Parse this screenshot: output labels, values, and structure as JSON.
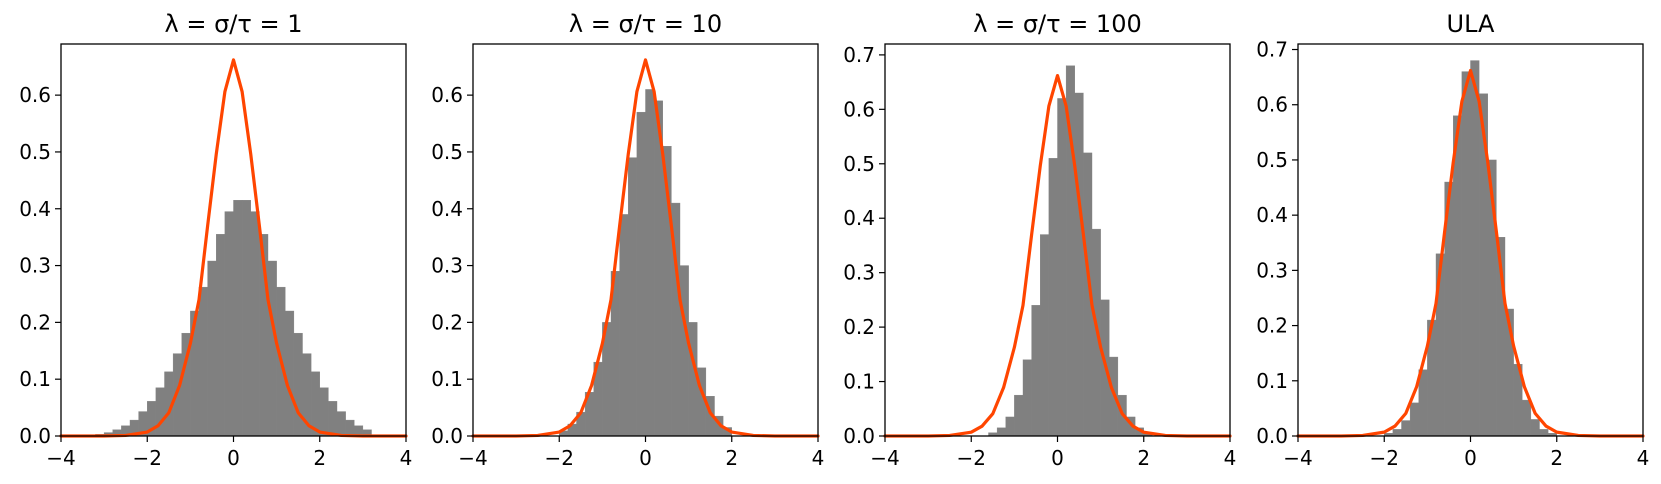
{
  "figure": {
    "background": "#ffffff",
    "bar_color": "#808080",
    "curve_color": "#ff4500"
  },
  "chart_data": [
    {
      "type": "bar",
      "title": "λ = σ/τ = 1",
      "xlabel": "",
      "ylabel": "",
      "xlim": [
        -4,
        4
      ],
      "ylim": [
        0,
        0.69
      ],
      "xticks": [
        -4,
        -2,
        0,
        2,
        4
      ],
      "xtick_labels": [
        "−4",
        "−2",
        "0",
        "2",
        "4"
      ],
      "yticks": [
        0,
        0.1,
        0.2,
        0.3,
        0.4,
        0.5,
        0.6
      ],
      "ytick_labels": [
        "0.0",
        "0.1",
        "0.2",
        "0.3",
        "0.4",
        "0.5",
        "0.6"
      ],
      "grid": false,
      "series": [
        {
          "kind": "histogram",
          "bin_edges": [
            -3.2,
            -3.0,
            -2.8,
            -2.6,
            -2.4,
            -2.2,
            -2.0,
            -1.8,
            -1.6,
            -1.4,
            -1.2,
            -1.0,
            -0.8,
            -0.6,
            -0.4,
            -0.2,
            0.0,
            0.2,
            0.4,
            0.6,
            0.8,
            1.0,
            1.2,
            1.4,
            1.6,
            1.8,
            2.0,
            2.2,
            2.4,
            2.6,
            2.8,
            3.0,
            3.2
          ],
          "values": [
            0.003,
            0.006,
            0.011,
            0.018,
            0.028,
            0.043,
            0.061,
            0.085,
            0.113,
            0.145,
            0.181,
            0.22,
            0.262,
            0.308,
            0.355,
            0.395,
            0.415,
            0.415,
            0.395,
            0.355,
            0.308,
            0.262,
            0.22,
            0.181,
            0.145,
            0.113,
            0.085,
            0.061,
            0.043,
            0.028,
            0.018,
            0.011
          ]
        },
        {
          "kind": "curve",
          "x": [
            -4,
            -3.5,
            -3,
            -2.5,
            -2,
            -1.75,
            -1.5,
            -1.25,
            -1,
            -0.8,
            -0.6,
            -0.4,
            -0.2,
            0,
            0.2,
            0.4,
            0.6,
            0.8,
            1,
            1.25,
            1.5,
            1.75,
            2,
            2.5,
            3,
            3.5,
            4
          ],
          "y": [
            0.0,
            0.0,
            0.0,
            0.001,
            0.007,
            0.018,
            0.041,
            0.089,
            0.163,
            0.24,
            0.37,
            0.496,
            0.606,
            0.662,
            0.606,
            0.496,
            0.37,
            0.24,
            0.163,
            0.089,
            0.041,
            0.018,
            0.007,
            0.001,
            0.0,
            0.0,
            0.0
          ]
        }
      ]
    },
    {
      "type": "bar",
      "title": "λ = σ/τ = 10",
      "xlabel": "",
      "ylabel": "",
      "xlim": [
        -4,
        4
      ],
      "ylim": [
        0,
        0.69
      ],
      "xticks": [
        -4,
        -2,
        0,
        2,
        4
      ],
      "xtick_labels": [
        "−4",
        "−2",
        "0",
        "2",
        "4"
      ],
      "yticks": [
        0,
        0.1,
        0.2,
        0.3,
        0.4,
        0.5,
        0.6
      ],
      "ytick_labels": [
        "0.0",
        "0.1",
        "0.2",
        "0.3",
        "0.4",
        "0.5",
        "0.6"
      ],
      "grid": false,
      "series": [
        {
          "kind": "histogram",
          "bin_edges": [
            -2.0,
            -1.8,
            -1.6,
            -1.4,
            -1.2,
            -1.0,
            -0.8,
            -0.6,
            -0.4,
            -0.2,
            0.0,
            0.2,
            0.4,
            0.6,
            0.8,
            1.0,
            1.2,
            1.4,
            1.6,
            1.8,
            2.0
          ],
          "values": [
            0.009,
            0.021,
            0.042,
            0.077,
            0.13,
            0.2,
            0.29,
            0.39,
            0.49,
            0.57,
            0.61,
            0.59,
            0.51,
            0.41,
            0.3,
            0.2,
            0.12,
            0.07,
            0.035,
            0.015
          ]
        },
        {
          "kind": "curve",
          "x": [
            -4,
            -3,
            -2.5,
            -2,
            -1.75,
            -1.5,
            -1.25,
            -1,
            -0.8,
            -0.6,
            -0.4,
            -0.2,
            0,
            0.2,
            0.4,
            0.6,
            0.8,
            1,
            1.25,
            1.5,
            1.75,
            2,
            2.5,
            3,
            4
          ],
          "y": [
            0.0,
            0.0,
            0.001,
            0.007,
            0.018,
            0.041,
            0.089,
            0.163,
            0.24,
            0.37,
            0.496,
            0.606,
            0.662,
            0.606,
            0.496,
            0.37,
            0.24,
            0.163,
            0.089,
            0.041,
            0.018,
            0.007,
            0.001,
            0.0,
            0.0
          ]
        }
      ]
    },
    {
      "type": "bar",
      "title": "λ = σ/τ = 100",
      "xlabel": "",
      "ylabel": "",
      "xlim": [
        -4,
        4
      ],
      "ylim": [
        0,
        0.72
      ],
      "xticks": [
        -4,
        -2,
        0,
        2,
        4
      ],
      "xtick_labels": [
        "−4",
        "−2",
        "0",
        "2",
        "4"
      ],
      "yticks": [
        0,
        0.1,
        0.2,
        0.3,
        0.4,
        0.5,
        0.6,
        0.7
      ],
      "ytick_labels": [
        "0.0",
        "0.1",
        "0.2",
        "0.3",
        "0.4",
        "0.5",
        "0.6",
        "0.7"
      ],
      "grid": false,
      "series": [
        {
          "kind": "histogram",
          "bin_edges": [
            -1.6,
            -1.4,
            -1.2,
            -1.0,
            -0.8,
            -0.6,
            -0.4,
            -0.2,
            0.0,
            0.2,
            0.4,
            0.6,
            0.8,
            1.0,
            1.2,
            1.4,
            1.6,
            1.8,
            2.0,
            2.2
          ],
          "values": [
            0.006,
            0.015,
            0.035,
            0.075,
            0.14,
            0.24,
            0.37,
            0.51,
            0.62,
            0.68,
            0.63,
            0.52,
            0.38,
            0.25,
            0.145,
            0.075,
            0.035,
            0.015,
            0.006
          ]
        },
        {
          "kind": "curve",
          "x": [
            -4,
            -3,
            -2.5,
            -2,
            -1.75,
            -1.5,
            -1.25,
            -1,
            -0.8,
            -0.6,
            -0.4,
            -0.2,
            0,
            0.2,
            0.4,
            0.6,
            0.8,
            1,
            1.25,
            1.5,
            1.75,
            2,
            2.5,
            3,
            4
          ],
          "y": [
            0.0,
            0.0,
            0.001,
            0.007,
            0.018,
            0.041,
            0.089,
            0.163,
            0.24,
            0.37,
            0.496,
            0.606,
            0.662,
            0.606,
            0.496,
            0.37,
            0.24,
            0.163,
            0.089,
            0.041,
            0.018,
            0.007,
            0.001,
            0.0,
            0.0
          ]
        }
      ]
    },
    {
      "type": "bar",
      "title": "ULA",
      "xlabel": "",
      "ylabel": "",
      "xlim": [
        -4,
        4
      ],
      "ylim": [
        0,
        0.71
      ],
      "xticks": [
        -4,
        -2,
        0,
        2,
        4
      ],
      "xtick_labels": [
        "−4",
        "−2",
        "0",
        "2",
        "4"
      ],
      "yticks": [
        0,
        0.1,
        0.2,
        0.3,
        0.4,
        0.5,
        0.6,
        0.7
      ],
      "ytick_labels": [
        "0.0",
        "0.1",
        "0.2",
        "0.3",
        "0.4",
        "0.5",
        "0.6",
        "0.7"
      ],
      "grid": false,
      "series": [
        {
          "kind": "histogram",
          "bin_edges": [
            -2.0,
            -1.8,
            -1.6,
            -1.4,
            -1.2,
            -1.0,
            -0.8,
            -0.6,
            -0.4,
            -0.2,
            0.0,
            0.2,
            0.4,
            0.6,
            0.8,
            1.0,
            1.2,
            1.4,
            1.6,
            1.8,
            2.0
          ],
          "values": [
            0.005,
            0.012,
            0.028,
            0.06,
            0.12,
            0.21,
            0.33,
            0.46,
            0.58,
            0.66,
            0.68,
            0.62,
            0.5,
            0.36,
            0.23,
            0.13,
            0.065,
            0.03,
            0.012,
            0.005
          ]
        },
        {
          "kind": "curve",
          "x": [
            -4,
            -3,
            -2.5,
            -2,
            -1.75,
            -1.5,
            -1.25,
            -1,
            -0.8,
            -0.6,
            -0.4,
            -0.2,
            0,
            0.2,
            0.4,
            0.6,
            0.8,
            1,
            1.25,
            1.5,
            1.75,
            2,
            2.5,
            3,
            4
          ],
          "y": [
            0.0,
            0.0,
            0.001,
            0.007,
            0.018,
            0.041,
            0.089,
            0.163,
            0.24,
            0.37,
            0.496,
            0.606,
            0.662,
            0.606,
            0.496,
            0.37,
            0.24,
            0.163,
            0.089,
            0.041,
            0.018,
            0.007,
            0.001,
            0.0,
            0.0
          ]
        }
      ]
    }
  ]
}
